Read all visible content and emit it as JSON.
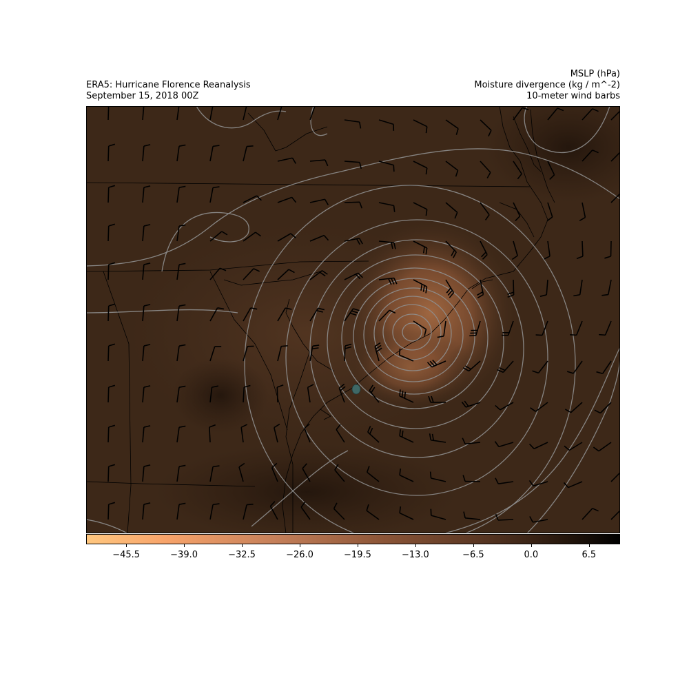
{
  "titles": {
    "left_line1": "ERA5: Hurricane Florence Reanalysis",
    "left_line2": "September 15, 2018 00Z",
    "right_line1": "MSLP (hPa)",
    "right_line2": "Moisture divergence (kg / m^-2)",
    "right_line3": "10-meter wind barbs"
  },
  "colorbar": {
    "ticks": [
      "−45.5",
      "−39.0",
      "−32.5",
      "−26.0",
      "−19.5",
      "−13.0",
      "−6.5",
      "0.0",
      "6.5"
    ],
    "tick_values": [
      -45.5,
      -39.0,
      -32.5,
      -26.0,
      -19.5,
      -13.0,
      -6.5,
      0.0,
      6.5
    ],
    "vmin": -50.0,
    "vmax": 10.0,
    "colormap": "copper_r",
    "color_low": "#ffc77f",
    "color_mid": "#8a5536",
    "color_high": "#000000"
  },
  "colors": {
    "background_field": "#3d2818",
    "isobars": "#8f8f8f",
    "boundaries": "#000000",
    "barbs": "#000000",
    "marker": "#3f6f6f"
  },
  "chart_data": {
    "type": "map",
    "fields": [
      "MSLP (hPa)",
      "Moisture divergence (kg / m^-2)",
      "10-meter wind barbs"
    ],
    "storm_center": "centered near the southeastern North Carolina coast",
    "moisture_divergence_min_approx": -20,
    "moisture_divergence_background_approx": -5
  }
}
